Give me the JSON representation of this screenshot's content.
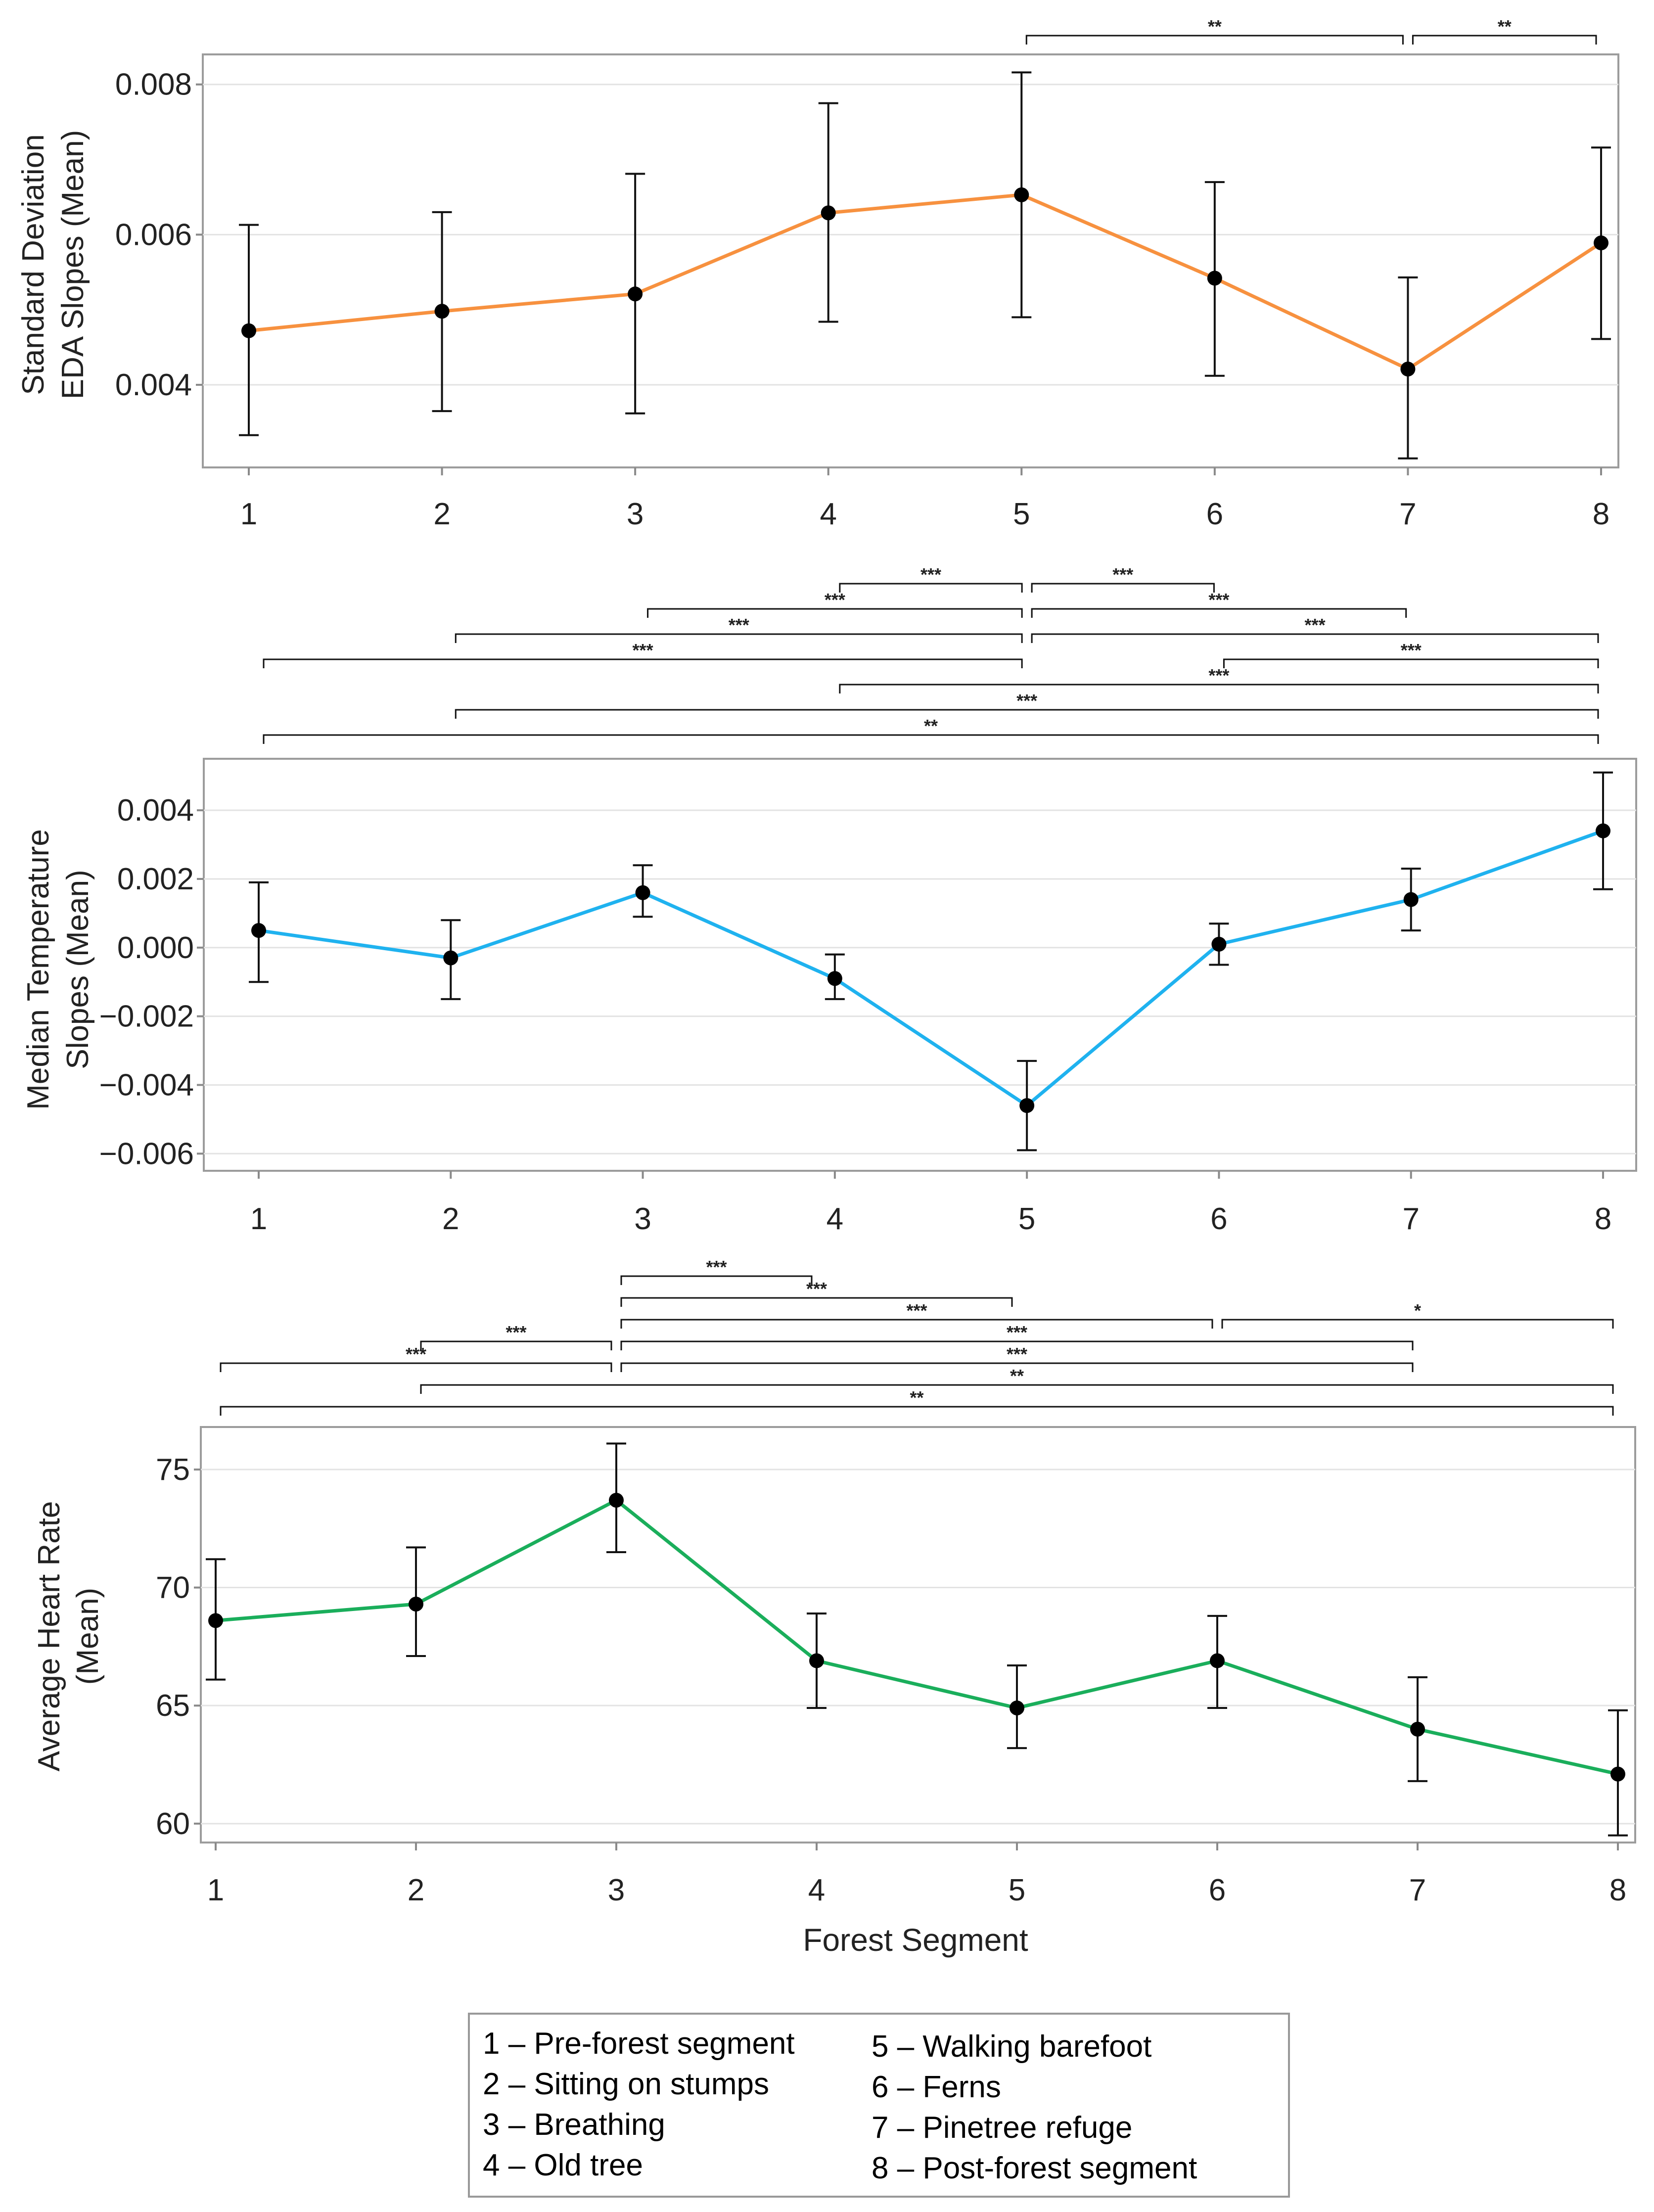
{
  "chart_data": [
    {
      "type": "line",
      "ylabel_lines": [
        "Standard Deviation",
        "EDA Slopes (Mean)"
      ],
      "categories": [
        "1",
        "2",
        "3",
        "4",
        "5",
        "6",
        "7",
        "8"
      ],
      "series": [
        {
          "name": "EDA",
          "color": "#f7913f",
          "values": [
            0.00472,
            0.00498,
            0.00521,
            0.00629,
            0.00653,
            0.00542,
            0.00421,
            0.00589
          ],
          "lower": [
            0.00333,
            0.00365,
            0.00362,
            0.00484,
            0.0049,
            0.00412,
            0.00302,
            0.00461
          ],
          "upper": [
            0.00613,
            0.0063,
            0.00681,
            0.00775,
            0.00816,
            0.0067,
            0.00543,
            0.00716
          ]
        }
      ],
      "ylim": [
        0.0029,
        0.0084
      ],
      "yticks": [
        0.004,
        0.006,
        0.008
      ],
      "ytick_labels": [
        "0.004",
        "0.006",
        "0.008"
      ],
      "grid": true,
      "significance": [
        {
          "from": 5,
          "to": 7,
          "label": "**",
          "row": 0
        },
        {
          "from": 7,
          "to": 8,
          "label": "**",
          "row": 0
        }
      ]
    },
    {
      "type": "line",
      "ylabel_lines": [
        "Median Temperature",
        "Slopes (Mean)"
      ],
      "categories": [
        "1",
        "2",
        "3",
        "4",
        "5",
        "6",
        "7",
        "8"
      ],
      "series": [
        {
          "name": "Temperature",
          "color": "#1fb2ef",
          "values": [
            0.0005,
            -0.0003,
            0.0016,
            -0.0009,
            -0.0046,
            0.0001,
            0.0014,
            0.0034
          ],
          "lower": [
            -0.001,
            -0.0015,
            0.0009,
            -0.0015,
            -0.0059,
            -0.0005,
            0.0005,
            0.0017
          ],
          "upper": [
            0.0019,
            0.0008,
            0.0024,
            -0.0002,
            -0.0033,
            0.0007,
            0.0023,
            0.0051
          ]
        }
      ],
      "ylim": [
        -0.0065,
        0.0055
      ],
      "yticks": [
        -0.006,
        -0.004,
        -0.002,
        0.0,
        0.002,
        0.004
      ],
      "ytick_labels": [
        "−0.006",
        "−0.004",
        "−0.002",
        "0.000",
        "0.002",
        "0.004"
      ],
      "grid": true,
      "significance": [
        {
          "from": 4,
          "to": 5,
          "label": "***",
          "row": 0
        },
        {
          "from": 5,
          "to": 6,
          "label": "***",
          "row": 0
        },
        {
          "from": 3,
          "to": 5,
          "label": "***",
          "row": 1
        },
        {
          "from": 5,
          "to": 7,
          "label": "***",
          "row": 1
        },
        {
          "from": 2,
          "to": 5,
          "label": "***",
          "row": 2
        },
        {
          "from": 5,
          "to": 8,
          "label": "***",
          "row": 2
        },
        {
          "from": 1,
          "to": 5,
          "label": "***",
          "row": 3
        },
        {
          "from": 6,
          "to": 8,
          "label": "***",
          "row": 3
        },
        {
          "from": 4,
          "to": 8,
          "label": "***",
          "row": 4
        },
        {
          "from": 2,
          "to": 8,
          "label": "***",
          "row": 5
        },
        {
          "from": 1,
          "to": 8,
          "label": "**",
          "row": 6
        }
      ]
    },
    {
      "type": "line",
      "ylabel_lines": [
        "Average Heart Rate",
        "(Mean)"
      ],
      "xlabel": "Forest Segment",
      "categories": [
        "1",
        "2",
        "3",
        "4",
        "5",
        "6",
        "7",
        "8"
      ],
      "series": [
        {
          "name": "Heart Rate",
          "color": "#1aae5b",
          "values": [
            68.6,
            69.3,
            73.7,
            66.9,
            64.9,
            66.9,
            64.0,
            62.1
          ],
          "lower": [
            66.1,
            67.1,
            71.5,
            64.9,
            63.2,
            64.9,
            61.8,
            59.5
          ],
          "upper": [
            71.2,
            71.7,
            76.1,
            68.9,
            66.7,
            68.8,
            66.2,
            64.8
          ]
        }
      ],
      "ylim": [
        59.2,
        76.8
      ],
      "yticks": [
        60,
        65,
        70,
        75
      ],
      "ytick_labels": [
        "60",
        "65",
        "70",
        "75"
      ],
      "grid": true,
      "significance": [
        {
          "from": 3,
          "to": 4,
          "label": "***",
          "row": 0
        },
        {
          "from": 3,
          "to": 5,
          "label": "***",
          "row": 1
        },
        {
          "from": 3,
          "to": 6,
          "label": "***",
          "row": 2
        },
        {
          "from": 6,
          "to": 8,
          "label": "*",
          "row": 2
        },
        {
          "from": 2,
          "to": 3,
          "label": "***",
          "row": 3
        },
        {
          "from": 3,
          "to": 7,
          "label": "***",
          "row": 3
        },
        {
          "from": 1,
          "to": 3,
          "label": "***",
          "row": 4
        },
        {
          "from": 3,
          "to": 7,
          "label": "***",
          "row": 4
        },
        {
          "from": 2,
          "to": 8,
          "label": "**",
          "row": 5
        },
        {
          "from": 1,
          "to": 8,
          "label": "**",
          "row": 6
        }
      ]
    }
  ],
  "legend": {
    "items": [
      "1 – Pre-forest segment",
      "2 – Sitting on stumps",
      "3 – Breathing",
      "4 – Old tree",
      "5 – Walking barefoot",
      "6 – Ferns",
      "7 – Pinetree refuge",
      "8 – Post-forest segment"
    ]
  }
}
